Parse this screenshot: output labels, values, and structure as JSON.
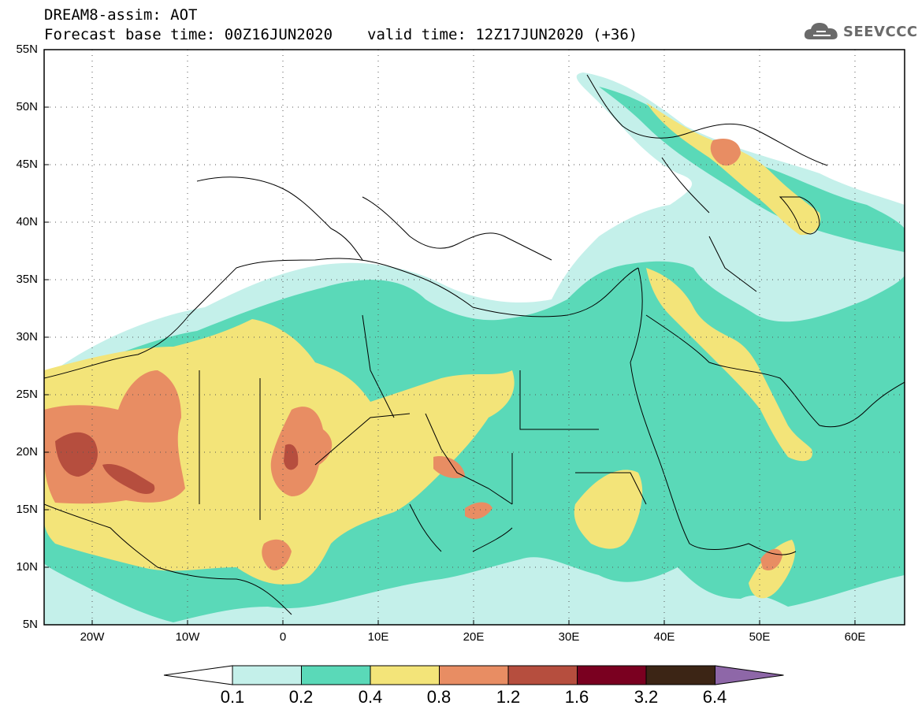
{
  "title": {
    "line1": "DREAM8-assim: AOT",
    "base_time": "Forecast base time: 00Z16JUN2020",
    "valid_time": "valid time: 12Z17JUN2020 (+36)"
  },
  "logo": {
    "text": "SEEVCCC",
    "icon": "cloud-icon"
  },
  "map": {
    "lat_labels": [
      "55N",
      "50N",
      "45N",
      "40N",
      "35N",
      "30N",
      "25N",
      "20N",
      "15N",
      "10N",
      "5N"
    ],
    "lon_labels": [
      "20W",
      "10W",
      "0",
      "10E",
      "20E",
      "30E",
      "40E",
      "50E",
      "60E"
    ],
    "lat_range": [
      5,
      55
    ],
    "lon_range": [
      -25,
      65
    ],
    "grid": true
  },
  "colorbar": {
    "labels": [
      "0.1",
      "0.2",
      "0.4",
      "0.8",
      "1.2",
      "1.6",
      "3.2",
      "6.4"
    ],
    "colors": [
      "#c4f0ea",
      "#5ad9b8",
      "#f3e479",
      "#e88d63",
      "#b64e3e",
      "#7a0020",
      "#3c2515",
      "#8e67a8"
    ]
  }
}
